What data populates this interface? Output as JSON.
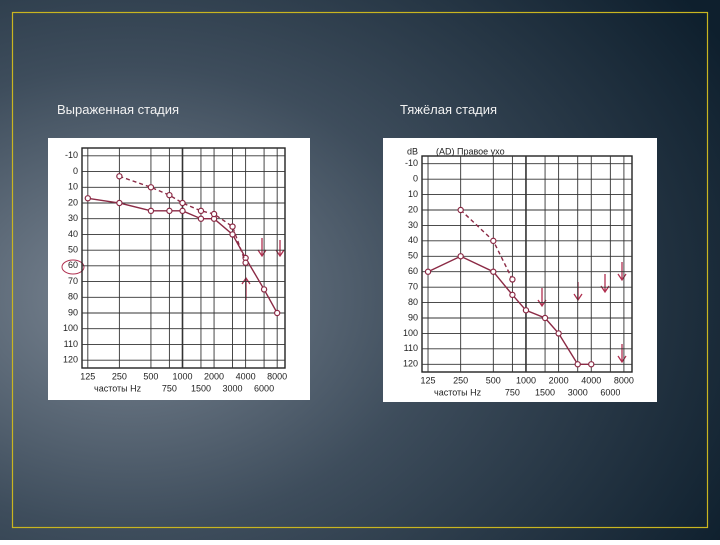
{
  "slide": {
    "left_caption": "Выраженная стадия",
    "right_caption": "Тяжёлая стадия"
  },
  "chart_data": [
    {
      "type": "line",
      "x_label": "частоты Hz",
      "xscale": "log",
      "invert_y": true,
      "grid": true,
      "x": [
        125,
        250,
        500,
        750,
        1000,
        1500,
        2000,
        3000,
        4000,
        6000,
        8000
      ],
      "xlim": [
        110,
        9500
      ],
      "xticks": [
        125,
        250,
        500,
        750,
        1000,
        1500,
        2000,
        3000,
        4000,
        6000,
        8000
      ],
      "ylim": [
        -15,
        125
      ],
      "yticks": [
        -10,
        0,
        10,
        20,
        30,
        40,
        50,
        60,
        70,
        80,
        90,
        100,
        110,
        120
      ],
      "series": [
        {
          "color": "#8b2a45",
          "dashed": false,
          "values": [
            17,
            20,
            25,
            25,
            25,
            30,
            30,
            40,
            55,
            75,
            90
          ]
        },
        {
          "color": "#8b2a45",
          "dashed": true,
          "values": [
            null,
            3,
            10,
            15,
            20,
            25,
            27,
            35,
            58,
            null,
            null
          ]
        }
      ]
    },
    {
      "type": "line",
      "title": "(AD) Правое ухо",
      "y_label": "dB",
      "x_label": "частоты Hz",
      "xscale": "log",
      "invert_y": true,
      "grid": true,
      "x": [
        125,
        250,
        500,
        750,
        1000,
        1500,
        2000,
        3000,
        4000,
        6000,
        8000
      ],
      "xlim": [
        110,
        9500
      ],
      "xticks": [
        125,
        250,
        500,
        750,
        1000,
        1500,
        2000,
        3000,
        4000,
        6000,
        8000
      ],
      "ylim": [
        -15,
        125
      ],
      "yticks": [
        -10,
        0,
        10,
        20,
        30,
        40,
        50,
        60,
        70,
        80,
        90,
        100,
        110,
        120
      ],
      "series": [
        {
          "color": "#8b2a45",
          "dashed": false,
          "values": [
            60,
            50,
            60,
            75,
            85,
            90,
            100,
            120,
            120,
            null,
            null
          ]
        },
        {
          "color": "#8b2a45",
          "dashed": true,
          "values": [
            null,
            20,
            40,
            65,
            null,
            null,
            null,
            null,
            null,
            null,
            null
          ]
        }
      ]
    }
  ]
}
